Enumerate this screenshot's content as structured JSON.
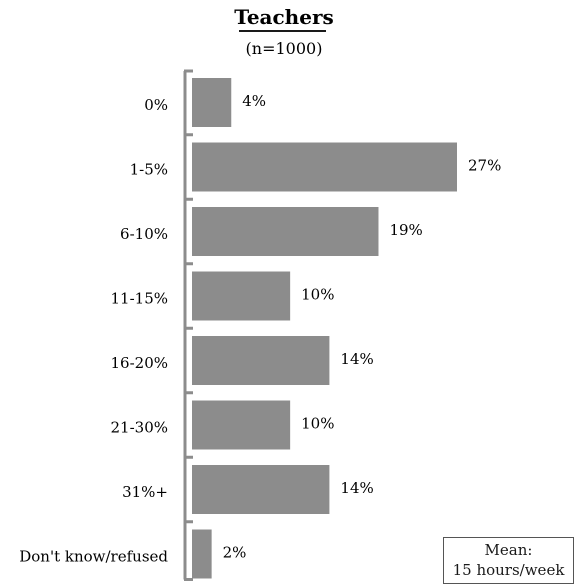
{
  "chart_data": {
    "type": "bar",
    "orientation": "horizontal",
    "title": "Teachers",
    "subtitle": "(n=1000)",
    "categories": [
      "0%",
      "1-5%",
      "6-10%",
      "11-15%",
      "16-20%",
      "21-30%",
      "31%+",
      "Don't know/refused"
    ],
    "values": [
      4,
      27,
      19,
      10,
      14,
      10,
      14,
      2
    ],
    "value_labels": [
      "4%",
      "27%",
      "19%",
      "10%",
      "14%",
      "10%",
      "14%",
      "2%"
    ],
    "xlim": [
      0,
      27
    ],
    "grid": false,
    "bar_color": "#8c8c8c",
    "axis_color": "#8c8c8c"
  },
  "mean_box": {
    "line1": "Mean:",
    "line2": "15 hours/week"
  }
}
